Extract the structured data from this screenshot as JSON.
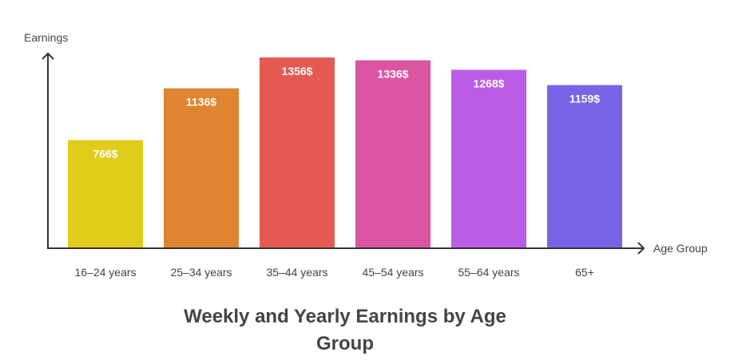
{
  "chart_data": {
    "type": "bar",
    "title": "Weekly and Yearly Earnings by Age Group",
    "xlabel": "Age Group",
    "ylabel": "Earnings",
    "categories": [
      "16–24 years",
      "25–34 years",
      "35–44 years",
      "45–54 years",
      "55–64 years",
      "65+"
    ],
    "values": [
      766,
      1136,
      1356,
      1336,
      1268,
      1159
    ],
    "value_labels": [
      "766$",
      "1136$",
      "1356$",
      "1336$",
      "1268$",
      "1159$"
    ],
    "colors": [
      "#e0cc1a",
      "#df8430",
      "#e45a52",
      "#dc55a3",
      "#bb5ce6",
      "#7b63e8"
    ],
    "ylim": [
      0,
      1400
    ],
    "grid": false,
    "legend": "none"
  }
}
